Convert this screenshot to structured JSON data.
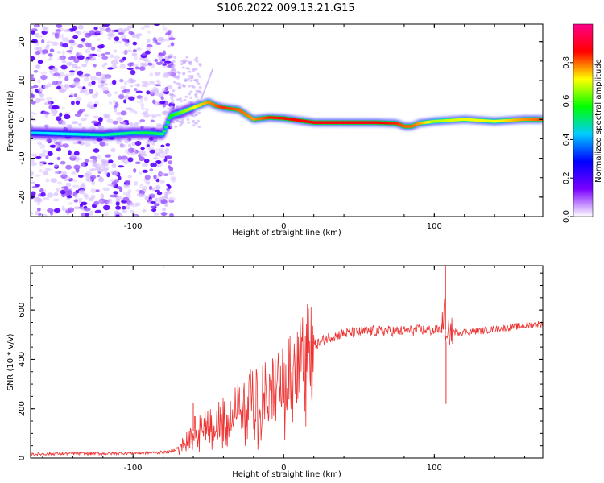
{
  "title": "S106.2022.009.13.21.G15",
  "chart_data": [
    {
      "type": "heatmap",
      "xlabel": "Height of straight line (km)",
      "ylabel": "Frequency (Hz)",
      "xlim": [
        -168,
        172
      ],
      "ylim": [
        -25,
        24.5
      ],
      "x_ticks": [
        -100,
        0,
        100
      ],
      "y_ticks": [
        -20,
        -10,
        0,
        10,
        20
      ],
      "colorbar": {
        "label": "Normalized spectral amplitude",
        "range": [
          0,
          1
        ],
        "ticks": [
          0.0,
          0.2,
          0.4,
          0.6,
          0.8
        ],
        "colormap": [
          "#ffffff",
          "#7a00ff",
          "#0000ff",
          "#00ccff",
          "#00ff00",
          "#ffff00",
          "#ff0000",
          "#ff0088"
        ]
      },
      "ridge": {
        "x": [
          -165,
          -140,
          -120,
          -100,
          -90,
          -80,
          -75,
          -70,
          -60,
          -50,
          -45,
          -40,
          -30,
          -20,
          -10,
          0,
          20,
          40,
          60,
          75,
          80,
          85,
          90,
          100,
          120,
          140,
          160,
          170
        ],
        "freq": [
          -3.5,
          -3.8,
          -4,
          -3.5,
          -3.5,
          -3.8,
          1,
          1.5,
          3,
          4.5,
          3.5,
          3,
          2.5,
          0,
          0.5,
          0.3,
          -0.8,
          -0.8,
          -0.8,
          -1,
          -1.8,
          -1.8,
          -1,
          -0.5,
          0,
          -0.5,
          0,
          0
        ],
        "amplitude": [
          0.3,
          0.35,
          0.4,
          0.45,
          0.5,
          0.45,
          0.55,
          0.6,
          0.75,
          0.85,
          0.9,
          0.95,
          0.9,
          0.85,
          0.95,
          0.97,
          1,
          1,
          1,
          0.95,
          0.9,
          0.9,
          0.85,
          0.7,
          0.75,
          0.75,
          0.85,
          0.9
        ]
      }
    },
    {
      "type": "line",
      "xlabel": "Height of straight line (km)",
      "ylabel": "SNR (10 * v/v)",
      "xlim": [
        -168,
        172
      ],
      "ylim": [
        0,
        780
      ],
      "x_ticks": [
        -100,
        0,
        100
      ],
      "y_ticks": [
        0,
        200,
        400,
        600
      ],
      "color": "#ee3333",
      "x": [
        -168,
        -150,
        -120,
        -100,
        -85,
        -75,
        -65,
        -60,
        -55,
        -50,
        -40,
        -30,
        -20,
        -10,
        0,
        5,
        10,
        15,
        20,
        30,
        40,
        60,
        80,
        95,
        100,
        105,
        107,
        108,
        110,
        115,
        130,
        150,
        172
      ],
      "y": [
        15,
        18,
        18,
        20,
        22,
        25,
        60,
        110,
        120,
        135,
        170,
        210,
        250,
        270,
        310,
        350,
        390,
        420,
        455,
        490,
        505,
        515,
        515,
        520,
        515,
        525,
        600,
        440,
        515,
        510,
        515,
        530,
        545
      ],
      "spikes": [
        {
          "x": -60,
          "y": 225
        },
        {
          "x": 107.5,
          "y": 780
        },
        {
          "x": 107.8,
          "y": 220
        }
      ]
    }
  ]
}
